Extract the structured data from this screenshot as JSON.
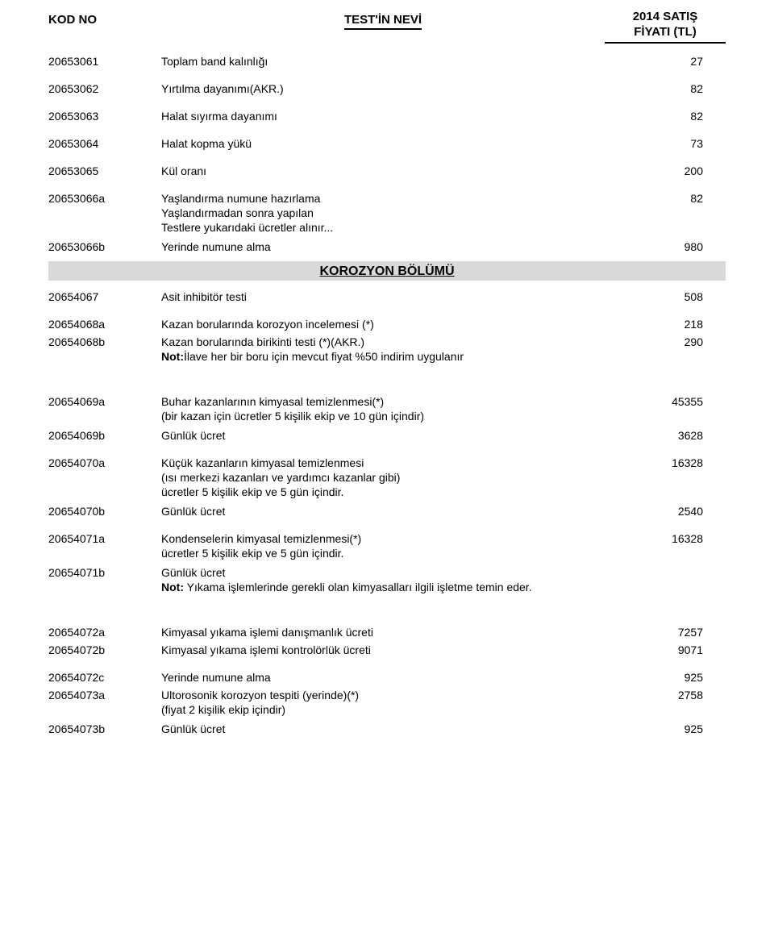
{
  "header": {
    "code": "KOD NO",
    "name": "TEST'İN NEVİ",
    "price_l1": "2014 SATIŞ",
    "price_l2": "FİYATI (TL)"
  },
  "section_band": "KOROZYON BÖLÜMÜ",
  "r1": {
    "code": "20653061",
    "name": "Toplam band kalınlığı",
    "price": "27"
  },
  "r2": {
    "code": "20653062",
    "name": "Yırtılma dayanımı(AKR.)",
    "price": "82"
  },
  "r3": {
    "code": "20653063",
    "name": "Halat sıyırma dayanımı",
    "price": "82"
  },
  "r4": {
    "code": "20653064",
    "name": "Halat kopma yükü",
    "price": "73"
  },
  "r5": {
    "code": "20653065",
    "name": "Kül oranı",
    "price": "200"
  },
  "r6": {
    "code": "20653066a",
    "name": "Yaşlandırma numune hazırlama",
    "price": "82",
    "sub1": "Yaşlandırmadan sonra yapılan",
    "sub2": "Testlere yukarıdaki ücretler alınır..."
  },
  "r7": {
    "code": "20653066b",
    "name": "Yerinde numune alma",
    "price": "980"
  },
  "r8": {
    "code": "20654067",
    "name": "Asit inhibitör testi",
    "price": "508"
  },
  "r9": {
    "code": "20654068a",
    "name": "Kazan borularında  korozyon incelemesi (*)",
    "price": "218"
  },
  "r10": {
    "code": "20654068b",
    "name": "Kazan borularında  birikinti testi (*)(AKR.)",
    "price": "290",
    "note_b": "Not:",
    "note": "İlave her bir boru için mevcut fiyat %50 indirim uygulanır"
  },
  "r11": {
    "code": "20654069a",
    "name": "Buhar kazanlarının kimyasal temizlenmesi(*)",
    "price": "45355",
    "sub1": "(bir kazan için ücretler 5 kişilik ekip ve 10 gün içindir)"
  },
  "r12": {
    "code": "20654069b",
    "name": "Günlük ücret",
    "price": "3628"
  },
  "r13": {
    "code": "20654070a",
    "name": "Küçük kazanların kimyasal temizlenmesi",
    "price": "16328",
    "sub1": "(ısı merkezi kazanları ve yardımcı kazanlar gibi)",
    "sub2": "ücretler 5 kişilik ekip ve 5 gün içindir."
  },
  "r14": {
    "code": "20654070b",
    "name": "Günlük ücret",
    "price": "2540"
  },
  "r15": {
    "code": "20654071a",
    "name": "Kondenselerin kimyasal temizlenmesi(*)",
    "price": "16328",
    "sub1": "ücretler 5 kişilik ekip ve 5 gün içindir."
  },
  "r16": {
    "code": "20654071b",
    "name": "Günlük ücret",
    "note_b": "Not:",
    "note": " Yıkama işlemlerinde gerekli olan kimyasalları ilgili işletme temin eder."
  },
  "r17": {
    "code": "20654072a",
    "name": "Kimyasal yıkama işlemi danışmanlık ücreti",
    "price": "7257"
  },
  "r18": {
    "code": "20654072b",
    "name": "Kimyasal yıkama işlemi kontrolörlük ücreti",
    "price": "9071"
  },
  "r19": {
    "code": "20654072c",
    "name": "Yerinde numune alma",
    "price": "925"
  },
  "r20": {
    "code": "20654073a",
    "name": "Ultorosonik korozyon tespiti (yerinde)(*)",
    "price": "2758",
    "sub1": "(fiyat 2 kişilik ekip içindir)"
  },
  "r21": {
    "code": "20654073b",
    "name": "Günlük ücret",
    "price": "925"
  }
}
